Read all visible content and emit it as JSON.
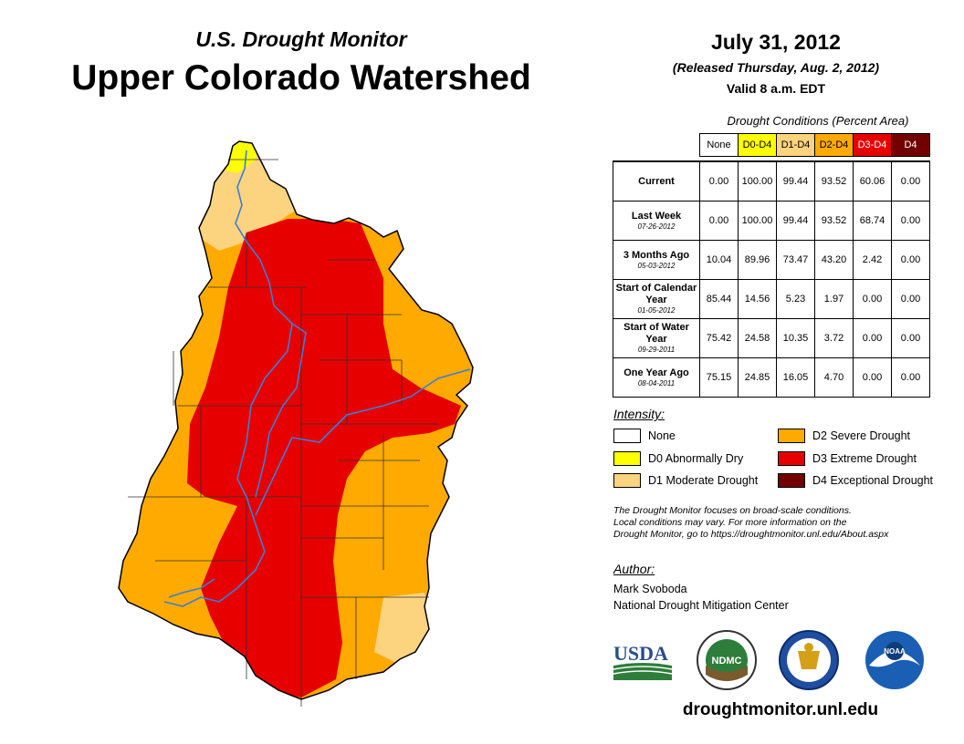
{
  "header": {
    "subtitle": "U.S. Drought Monitor",
    "title": "Upper Colorado Watershed",
    "date": "July 31, 2012",
    "released": "(Released Thursday, Aug. 2, 2012)",
    "valid": "Valid 8 a.m. EDT"
  },
  "table": {
    "caption": "Drought Conditions (Percent Area)",
    "columns": [
      "None",
      "D0-D4",
      "D1-D4",
      "D2-D4",
      "D3-D4",
      "D4"
    ],
    "rows": [
      {
        "label": "Current",
        "date": "",
        "values": [
          "0.00",
          "100.00",
          "99.44",
          "93.52",
          "60.06",
          "0.00"
        ]
      },
      {
        "label": "Last Week",
        "date": "07-26-2012",
        "values": [
          "0.00",
          "100.00",
          "99.44",
          "93.52",
          "68.74",
          "0.00"
        ]
      },
      {
        "label": "3 Months Ago",
        "date": "05-03-2012",
        "values": [
          "10.04",
          "89.96",
          "73.47",
          "43.20",
          "2.42",
          "0.00"
        ]
      },
      {
        "label": "Start of Calendar Year",
        "date": "01-05-2012",
        "values": [
          "85.44",
          "14.56",
          "5.23",
          "1.97",
          "0.00",
          "0.00"
        ]
      },
      {
        "label": "Start of Water Year",
        "date": "09-29-2011",
        "values": [
          "75.42",
          "24.58",
          "10.35",
          "3.72",
          "0.00",
          "0.00"
        ]
      },
      {
        "label": "One Year Ago",
        "date": "08-04-2011",
        "values": [
          "75.15",
          "24.85",
          "16.05",
          "4.70",
          "0.00",
          "0.00"
        ]
      }
    ]
  },
  "legend": {
    "title": "Intensity:",
    "items": [
      {
        "label": "None",
        "color": "#ffffff"
      },
      {
        "label": "D0 Abnormally Dry",
        "color": "#ffff00"
      },
      {
        "label": "D1 Moderate Drought",
        "color": "#fcd37f"
      },
      {
        "label": "D2 Severe Drought",
        "color": "#ffaa00"
      },
      {
        "label": "D3 Extreme Drought",
        "color": "#e60000"
      },
      {
        "label": "D4 Exceptional Drought",
        "color": "#730000"
      }
    ]
  },
  "note": {
    "line1": "The Drought Monitor focuses on broad-scale conditions.",
    "line2": "Local conditions may vary. For more information on the",
    "line3": "Drought Monitor, go to https://droughtmonitor.unl.edu/About.aspx"
  },
  "author": {
    "title": "Author:",
    "name": "Mark Svoboda",
    "org": "National Drought Mitigation Center"
  },
  "logos": {
    "usda": "USDA",
    "ndmc": "NDMC",
    "noaa": "NOAA"
  },
  "footer": {
    "url": "droughtmonitor.unl.edu"
  },
  "colors": {
    "d0": "#ffff00",
    "d1": "#fcd37f",
    "d2": "#ffaa00",
    "d3": "#e60000",
    "d4": "#730000",
    "river": "#3a7fd8"
  }
}
